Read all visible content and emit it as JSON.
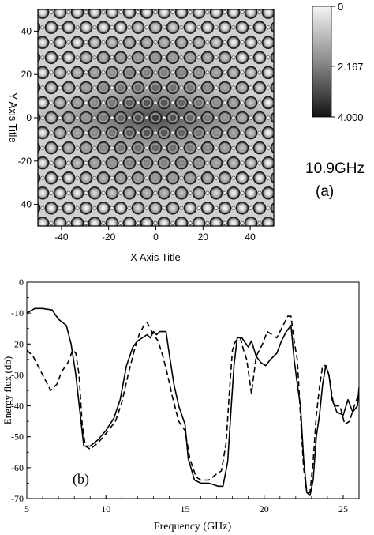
{
  "chart_data": [
    {
      "panel": "a",
      "type": "heatmap",
      "xlabel": "X Axis Title",
      "ylabel": "Y Axis Title",
      "xlim": [
        -50,
        50
      ],
      "ylim": [
        -50,
        50
      ],
      "xticks": [
        -40,
        -20,
        0,
        20,
        40
      ],
      "yticks": [
        -40,
        -20,
        0,
        20,
        40
      ],
      "frequency_label": "10.9GHz",
      "panel_label": "(a)",
      "colorbar": {
        "range": [
          0,
          4.0
        ],
        "tick_labels": [
          "0",
          "2.167",
          "4.000"
        ],
        "tick_values": [
          0,
          2.167,
          4.0
        ]
      }
    },
    {
      "panel": "b",
      "type": "line",
      "xlabel": "Frequency (GHz)",
      "ylabel": "Energy flux (db)",
      "xlim": [
        5,
        26
      ],
      "ylim": [
        -70,
        0
      ],
      "xticks": [
        5,
        10,
        15,
        20,
        25
      ],
      "yticks": [
        0,
        -10,
        -20,
        -30,
        -40,
        -50,
        -60,
        -70
      ],
      "panel_label": "(b)",
      "series": [
        {
          "style": "solid",
          "x": [
            5,
            5.5,
            6,
            6.6,
            7,
            7.5,
            7.8,
            8.1,
            8.4,
            8.6,
            9,
            9.5,
            10,
            10.5,
            10.9,
            11.3,
            11.7,
            12,
            12.3,
            12.6,
            12.8,
            13,
            13.2,
            13.4,
            13.6,
            13.8,
            14,
            14.3,
            14.6,
            15,
            15.2,
            15.6,
            16,
            16.5,
            16.8,
            17.1,
            17.4,
            17.7,
            17.9,
            18.1,
            18.3,
            18.6,
            19,
            19.2,
            19.5,
            19.8,
            20.1,
            20.4,
            20.8,
            21.1,
            21.4,
            21.7,
            21.9,
            22.1,
            22.3,
            22.5,
            22.7,
            22.9,
            23.1,
            23.3,
            23.5,
            23.7,
            23.9,
            24.1,
            24.3,
            24.6,
            25,
            25.3,
            25.6,
            25.9,
            26
          ],
          "y": [
            -10,
            -8.5,
            -8.5,
            -9,
            -12,
            -14,
            -20,
            -30,
            -44,
            -53,
            -53,
            -51,
            -48,
            -44,
            -38,
            -27,
            -21,
            -19,
            -18,
            -17,
            -18,
            -16,
            -17,
            -16,
            -16,
            -16,
            -23,
            -33,
            -40,
            -46,
            -57,
            -64,
            -65,
            -65,
            -65.5,
            -66,
            -66,
            -58,
            -42,
            -27,
            -18,
            -18,
            -21,
            -19,
            -24,
            -26,
            -27,
            -25,
            -23,
            -19,
            -16,
            -14,
            -25,
            -33,
            -40,
            -57,
            -68,
            -69,
            -64,
            -50,
            -43,
            -33,
            -27,
            -30,
            -38,
            -42,
            -43,
            -38,
            -42,
            -40,
            -34
          ]
        },
        {
          "style": "dashed",
          "x": [
            5,
            5.4,
            5.8,
            6.2,
            6.5,
            6.9,
            7.2,
            7.6,
            7.9,
            8.1,
            8.3,
            8.5,
            8.7,
            9,
            9.5,
            10,
            10.6,
            11,
            11.4,
            11.8,
            12.1,
            12.4,
            12.6,
            12.8,
            13,
            13.3,
            13.6,
            13.9,
            14.2,
            14.6,
            15,
            15.3,
            15.7,
            16,
            16.5,
            17,
            17.3,
            17.6,
            17.8,
            18,
            18.2,
            18.5,
            18.7,
            18.9,
            19.2,
            19.5,
            19.9,
            20.2,
            20.5,
            20.8,
            21.2,
            21.5,
            21.7,
            21.9,
            22.1,
            22.3,
            22.5,
            22.7,
            22.9,
            23.1,
            23.3,
            23.5,
            23.7,
            23.9,
            24.1,
            24.4,
            24.8,
            25.1,
            25.4,
            25.7,
            26
          ],
          "y": [
            -22,
            -24,
            -28,
            -32,
            -35,
            -33,
            -29,
            -26,
            -22,
            -23,
            -30,
            -46,
            -53,
            -54,
            -52,
            -49,
            -45,
            -39,
            -30,
            -22,
            -17,
            -14,
            -13,
            -15,
            -17,
            -19,
            -24,
            -30,
            -37,
            -45,
            -48,
            -57,
            -63,
            -64,
            -64,
            -62,
            -61,
            -52,
            -36,
            -22,
            -19,
            -18,
            -22,
            -25,
            -36,
            -24,
            -20,
            -16,
            -17,
            -18,
            -14,
            -11,
            -11,
            -19,
            -25,
            -43,
            -60,
            -68,
            -68,
            -58,
            -43,
            -34,
            -27,
            -27,
            -30,
            -40,
            -40,
            -46,
            -45,
            -40,
            -36
          ]
        }
      ]
    }
  ]
}
